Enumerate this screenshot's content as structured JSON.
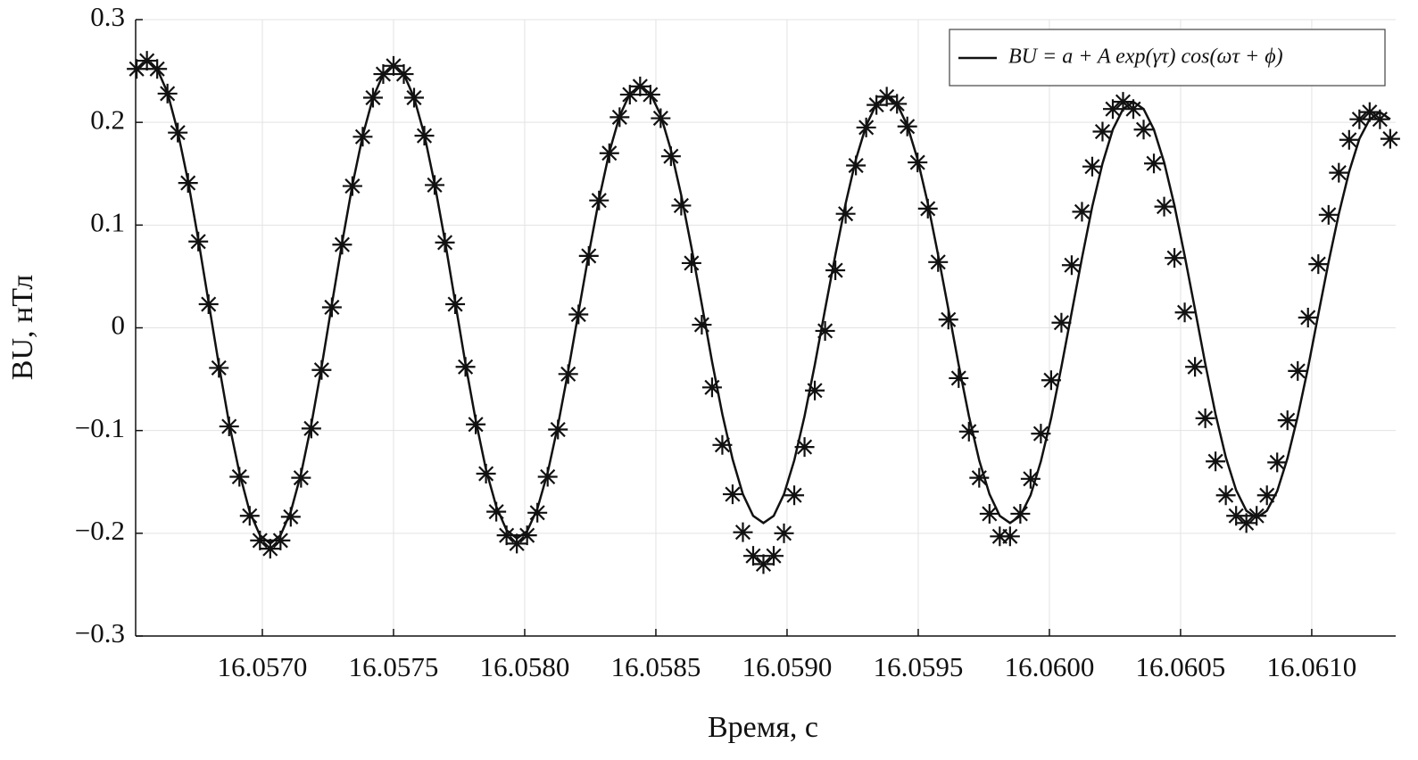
{
  "chart_data": {
    "type": "line",
    "xlabel": "Время, с",
    "ylabel": "BU, нТл",
    "xlim": [
      16.056517,
      16.06132
    ],
    "ylim": [
      -0.3,
      0.3
    ],
    "xticks": [
      {
        "value": 16.057,
        "label": "16.0570"
      },
      {
        "value": 16.0575,
        "label": "16.0575"
      },
      {
        "value": 16.058,
        "label": "16.0580"
      },
      {
        "value": 16.0585,
        "label": "16.0585"
      },
      {
        "value": 16.059,
        "label": "16.0590"
      },
      {
        "value": 16.0595,
        "label": "16.0595"
      },
      {
        "value": 16.06,
        "label": "16.0600"
      },
      {
        "value": 16.0605,
        "label": "16.0605"
      },
      {
        "value": 16.061,
        "label": "16.0610"
      }
    ],
    "yticks": [
      {
        "value": -0.3,
        "label": "−0.3"
      },
      {
        "value": -0.2,
        "label": "−0.2"
      },
      {
        "value": -0.1,
        "label": "−0.1"
      },
      0,
      0.1,
      0.2,
      0.3
    ],
    "grid": true,
    "legend": "upper right",
    "x": [
      16.0565208,
      16.05656,
      16.0565992,
      16.0566383,
      16.0566775,
      16.0567167,
      16.0567558,
      16.056795,
      16.0568342,
      16.0568733,
      16.0569125,
      16.0569517,
      16.0569908,
      16.05703,
      16.0570692,
      16.0571083,
      16.0571475,
      16.0571867,
      16.0572258,
      16.057265,
      16.0573042,
      16.0573433,
      16.0573825,
      16.0574217,
      16.0574608,
      16.0575,
      16.0575392,
      16.0575783,
      16.0576175,
      16.0576567,
      16.0576958,
      16.057735,
      16.0577742,
      16.0578133,
      16.0578525,
      16.0578917,
      16.0579308,
      16.05797,
      16.0580092,
      16.0580483,
      16.0580875,
      16.0581267,
      16.0581658,
      16.058205,
      16.0582442,
      16.0582833,
      16.0583225,
      16.0583617,
      16.0584008,
      16.05844,
      16.0584792,
      16.0585183,
      16.0585575,
      16.0585967,
      16.0586358,
      16.058675,
      16.0587142,
      16.0587533,
      16.0587925,
      16.0588317,
      16.0588708,
      16.05891,
      16.0589492,
      16.0589883,
      16.0590275,
      16.0590667,
      16.0591058,
      16.059145,
      16.0591842,
      16.0592233,
      16.0592625,
      16.0593017,
      16.0593408,
      16.05938,
      16.0594192,
      16.0594583,
      16.0594975,
      16.0595367,
      16.0595758,
      16.059615,
      16.0596542,
      16.0596933,
      16.0597325,
      16.0597717,
      16.0598108,
      16.05985,
      16.0598892,
      16.0599283,
      16.0599675,
      16.0600067,
      16.0600458,
      16.060085,
      16.0601242,
      16.0601633,
      16.0602025,
      16.0602417,
      16.0602808,
      16.06032,
      16.0603592,
      16.0603983,
      16.0604375,
      16.0604767,
      16.0605158,
      16.060555,
      16.0605942,
      16.0606333,
      16.0606725,
      16.0607117,
      16.0607508,
      16.06079,
      16.0608292,
      16.0608683,
      16.0609075,
      16.0609467,
      16.0609858,
      16.061025,
      16.0610642,
      16.0611033,
      16.0611425,
      16.0611817,
      16.0612208,
      16.06126,
      16.0612992
    ],
    "series": [
      {
        "name": "BU = a + A exp(γτ) cos(ωτ + ϕ)",
        "color": "#111111",
        "values": [
          0.252,
          0.26,
          0.252,
          0.229,
          0.191,
          0.143,
          0.086,
          0.025,
          -0.036,
          -0.093,
          -0.141,
          -0.179,
          -0.202,
          -0.21,
          -0.202,
          -0.179,
          -0.142,
          -0.094,
          -0.038,
          0.023,
          0.083,
          0.139,
          0.187,
          0.224,
          0.247,
          0.255,
          0.247,
          0.224,
          0.188,
          0.14,
          0.085,
          0.025,
          -0.035,
          -0.09,
          -0.138,
          -0.174,
          -0.197,
          -0.205,
          -0.198,
          -0.176,
          -0.141,
          -0.095,
          -0.042,
          0.015,
          0.072,
          0.125,
          0.171,
          0.206,
          0.228,
          0.235,
          0.228,
          0.207,
          0.173,
          0.129,
          0.078,
          0.023,
          -0.033,
          -0.084,
          -0.128,
          -0.162,
          -0.183,
          -0.19,
          -0.183,
          -0.162,
          -0.129,
          -0.086,
          -0.036,
          0.018,
          0.071,
          0.121,
          0.164,
          0.197,
          0.218,
          0.225,
          0.218,
          0.197,
          0.164,
          0.121,
          0.071,
          0.018,
          -0.036,
          -0.086,
          -0.129,
          -0.162,
          -0.183,
          -0.19,
          -0.183,
          -0.163,
          -0.13,
          -0.088,
          -0.038,
          0.015,
          0.068,
          0.118,
          0.16,
          0.193,
          0.213,
          0.22,
          0.213,
          0.193,
          0.161,
          0.119,
          0.07,
          0.018,
          -0.035,
          -0.084,
          -0.126,
          -0.158,
          -0.178,
          -0.185,
          -0.178,
          -0.159,
          -0.127,
          -0.086,
          -0.039,
          0.013,
          0.064,
          0.111,
          0.152,
          0.184,
          0.203,
          0.21,
          0.203
        ]
      },
      {
        "color": "#111111",
        "marker": "asterisk",
        "values": [
          0.252,
          0.26,
          0.252,
          0.228,
          0.19,
          0.141,
          0.084,
          0.023,
          -0.039,
          -0.096,
          -0.145,
          -0.183,
          -0.207,
          -0.215,
          -0.207,
          -0.184,
          -0.146,
          -0.098,
          -0.041,
          0.02,
          0.081,
          0.138,
          0.186,
          0.224,
          0.247,
          0.255,
          0.247,
          0.224,
          0.187,
          0.139,
          0.083,
          0.023,
          -0.038,
          -0.094,
          -0.142,
          -0.179,
          -0.202,
          -0.21,
          -0.202,
          -0.18,
          -0.145,
          -0.099,
          -0.045,
          0.013,
          0.07,
          0.124,
          0.17,
          0.205,
          0.227,
          0.235,
          0.227,
          0.204,
          0.167,
          0.119,
          0.063,
          0.003,
          -0.058,
          -0.114,
          -0.162,
          -0.199,
          -0.222,
          -0.23,
          -0.222,
          -0.2,
          -0.163,
          -0.116,
          -0.061,
          -0.003,
          0.056,
          0.111,
          0.158,
          0.195,
          0.217,
          0.225,
          0.218,
          0.196,
          0.161,
          0.116,
          0.064,
          0.008,
          -0.049,
          -0.101,
          -0.146,
          -0.181,
          -0.203,
          -0.203,
          -0.181,
          -0.147,
          -0.103,
          -0.051,
          0.005,
          0.061,
          0.113,
          0.157,
          0.191,
          0.213,
          0.22,
          0.213,
          0.193,
          0.16,
          0.118,
          0.068,
          0.015,
          -0.038,
          -0.088,
          -0.13,
          -0.163,
          -0.183,
          -0.19,
          -0.183,
          -0.163,
          -0.131,
          -0.09,
          -0.042,
          0.01,
          0.062,
          0.11,
          0.151,
          0.183,
          0.203,
          0.21,
          0.203,
          0.184
        ]
      }
    ]
  }
}
